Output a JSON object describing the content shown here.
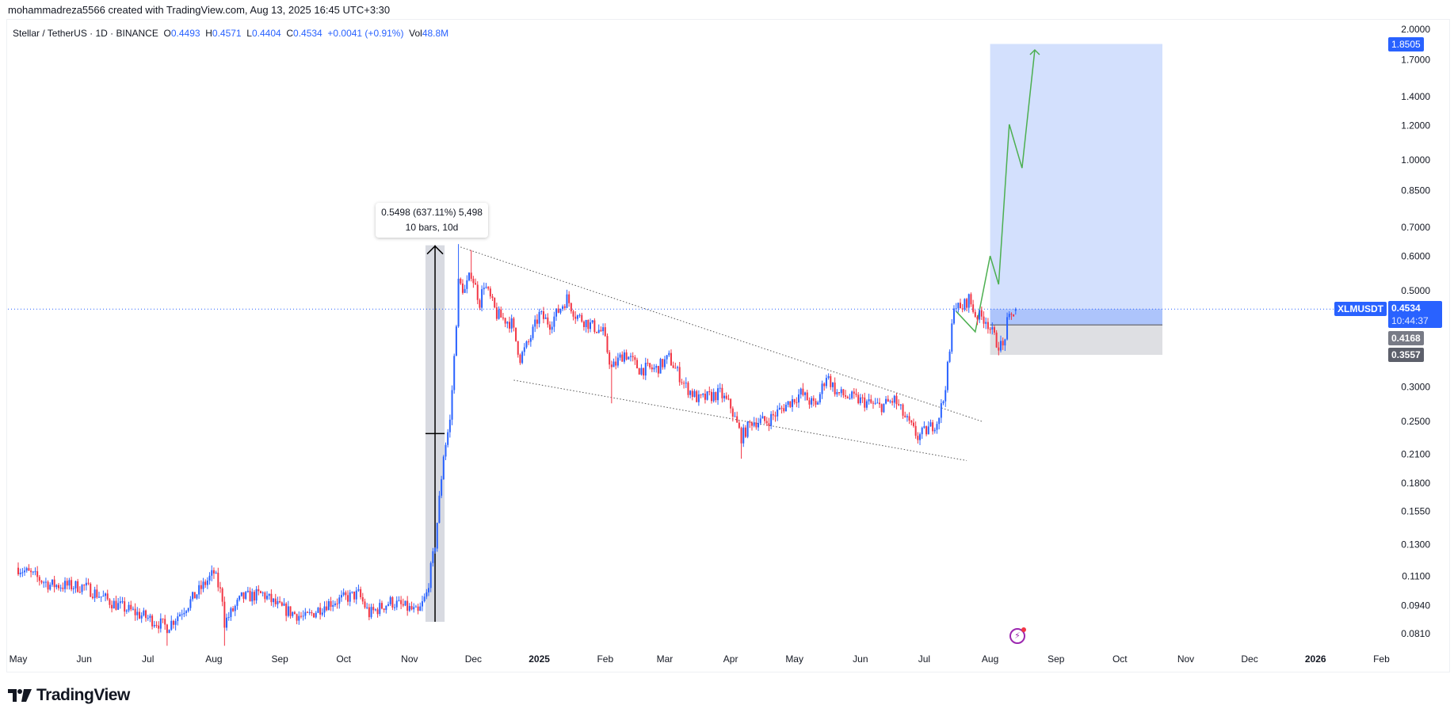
{
  "credit": "mohammadreza5566 created with TradingView.com, Aug 13, 2025 16:45 UTC+3:30",
  "legend": {
    "symbol": "Stellar / TetherUS · 1D · BINANCE",
    "o_label": "O",
    "o": "0.4493",
    "h_label": "H",
    "h": "0.4571",
    "l_label": "L",
    "l": "0.4404",
    "c_label": "C",
    "c": "0.4534",
    "change": "+0.0041 (+0.91%)",
    "vol_label": "Vol",
    "vol": "48.8M"
  },
  "labels": {
    "symbol_tag": "XLMUSDT",
    "last_price": "0.4534",
    "countdown": "10:44:37",
    "target": "1.8505",
    "entry": "0.4168",
    "stop": "0.3557"
  },
  "measure_tooltip": {
    "line1": "0.5498 (637.11%) 5,498",
    "line2": "10 bars, 10d"
  },
  "footer": {
    "logo_text": "TradingView"
  },
  "icons": {
    "alert": "lightning-icon",
    "logo": "tradingview-logo-icon"
  },
  "colors": {
    "up": "#2962ff",
    "down": "#f23645",
    "target_zone": "#d3e0fd",
    "stop_zone": "#dedfe3",
    "projection": "#4caf50",
    "price_line": "#2962ff"
  },
  "chart_data": {
    "type": "candlestick",
    "title": "Stellar / TetherUS · 1D · BINANCE",
    "scale": "log",
    "start_date": "2024-05-01",
    "ylim": [
      0.081,
      2.0
    ],
    "y_ticks": [
      "2.0000",
      "1.7000",
      "1.4000",
      "1.2000",
      "1.0000",
      "0.8500",
      "0.7000",
      "0.6000",
      "0.5000",
      "0.3000",
      "0.2500",
      "0.2100",
      "0.1800",
      "0.1550",
      "0.1300",
      "0.1100",
      "0.0940",
      "0.0810"
    ],
    "x_ticks": [
      {
        "day": 0,
        "label": "May"
      },
      {
        "day": 31,
        "label": "Jun"
      },
      {
        "day": 61,
        "label": "Jul"
      },
      {
        "day": 92,
        "label": "Aug"
      },
      {
        "day": 123,
        "label": "Sep"
      },
      {
        "day": 153,
        "label": "Oct"
      },
      {
        "day": 184,
        "label": "Nov"
      },
      {
        "day": 214,
        "label": "Dec"
      },
      {
        "day": 245,
        "label": "2025",
        "bold": true
      },
      {
        "day": 276,
        "label": "Feb"
      },
      {
        "day": 304,
        "label": "Mar"
      },
      {
        "day": 335,
        "label": "Apr"
      },
      {
        "day": 365,
        "label": "May"
      },
      {
        "day": 396,
        "label": "Jun"
      },
      {
        "day": 426,
        "label": "Jul"
      },
      {
        "day": 457,
        "label": "Aug"
      },
      {
        "day": 488,
        "label": "Sep"
      },
      {
        "day": 518,
        "label": "Oct"
      },
      {
        "day": 549,
        "label": "Nov"
      },
      {
        "day": 579,
        "label": "Dec"
      },
      {
        "day": 610,
        "label": "2026",
        "bold": true
      },
      {
        "day": 641,
        "label": "Feb"
      }
    ],
    "close_keypoints": [
      [
        0,
        0.115
      ],
      [
        15,
        0.105
      ],
      [
        31,
        0.104
      ],
      [
        45,
        0.095
      ],
      [
        61,
        0.088
      ],
      [
        70,
        0.084
      ],
      [
        80,
        0.095
      ],
      [
        92,
        0.112
      ],
      [
        96,
        0.098
      ],
      [
        97,
        0.086
      ],
      [
        105,
        0.098
      ],
      [
        115,
        0.1
      ],
      [
        123,
        0.093
      ],
      [
        135,
        0.088
      ],
      [
        145,
        0.095
      ],
      [
        160,
        0.1
      ],
      [
        165,
        0.09
      ],
      [
        175,
        0.096
      ],
      [
        185,
        0.092
      ],
      [
        188,
        0.09
      ],
      [
        192,
        0.1
      ],
      [
        196,
        0.13
      ],
      [
        200,
        0.21
      ],
      [
        203,
        0.25
      ],
      [
        205,
        0.35
      ],
      [
        207,
        0.52
      ],
      [
        210,
        0.5
      ],
      [
        213,
        0.55
      ],
      [
        217,
        0.47
      ],
      [
        219,
        0.52
      ],
      [
        225,
        0.44
      ],
      [
        232,
        0.42
      ],
      [
        236,
        0.35
      ],
      [
        240,
        0.38
      ],
      [
        245,
        0.44
      ],
      [
        250,
        0.42
      ],
      [
        258,
        0.48
      ],
      [
        262,
        0.44
      ],
      [
        268,
        0.42
      ],
      [
        275,
        0.4
      ],
      [
        279,
        0.33
      ],
      [
        285,
        0.36
      ],
      [
        292,
        0.33
      ],
      [
        300,
        0.33
      ],
      [
        306,
        0.35
      ],
      [
        314,
        0.3
      ],
      [
        320,
        0.28
      ],
      [
        330,
        0.29
      ],
      [
        335,
        0.27
      ],
      [
        340,
        0.23
      ],
      [
        345,
        0.25
      ],
      [
        352,
        0.25
      ],
      [
        360,
        0.27
      ],
      [
        368,
        0.29
      ],
      [
        375,
        0.27
      ],
      [
        380,
        0.32
      ],
      [
        385,
        0.29
      ],
      [
        395,
        0.28
      ],
      [
        405,
        0.27
      ],
      [
        412,
        0.28
      ],
      [
        418,
        0.25
      ],
      [
        423,
        0.23
      ],
      [
        428,
        0.24
      ],
      [
        432,
        0.25
      ],
      [
        435,
        0.28
      ],
      [
        438,
        0.36
      ],
      [
        440,
        0.47
      ],
      [
        443,
        0.45
      ],
      [
        447,
        0.48
      ],
      [
        450,
        0.44
      ],
      [
        455,
        0.43
      ],
      [
        460,
        0.38
      ],
      [
        463,
        0.37
      ],
      [
        465,
        0.42
      ],
      [
        469,
        0.4534
      ]
    ],
    "wick_extremes": [
      [
        70,
        0.076
      ],
      [
        97,
        0.076
      ],
      [
        279,
        0.275
      ],
      [
        340,
        0.205
      ],
      [
        213,
        0.62
      ],
      [
        207,
        0.64
      ]
    ],
    "last_bar": {
      "day": 469,
      "open": 0.4493,
      "high": 0.4571,
      "low": 0.4404,
      "close": 0.4534
    },
    "drawings": {
      "wedge_upper": [
        [
          208,
          0.63
        ],
        [
          453,
          0.25
        ]
      ],
      "wedge_lower": [
        [
          233,
          0.311
        ],
        [
          446,
          0.203
        ]
      ],
      "measure": {
        "from_day": 190,
        "to_day": 199,
        "from_price": 0.0863,
        "to_price": 0.636
      },
      "long_position": {
        "from_day": 457,
        "to_day": 538,
        "entry": 0.4168,
        "target": 1.8505,
        "stop": 0.3557
      },
      "projection_path": [
        [
          441,
          0.448
        ],
        [
          450,
          0.402
        ],
        [
          457,
          0.601
        ],
        [
          461,
          0.517
        ],
        [
          466,
          1.208
        ],
        [
          472,
          0.958
        ],
        [
          478,
          1.793
        ]
      ]
    }
  }
}
